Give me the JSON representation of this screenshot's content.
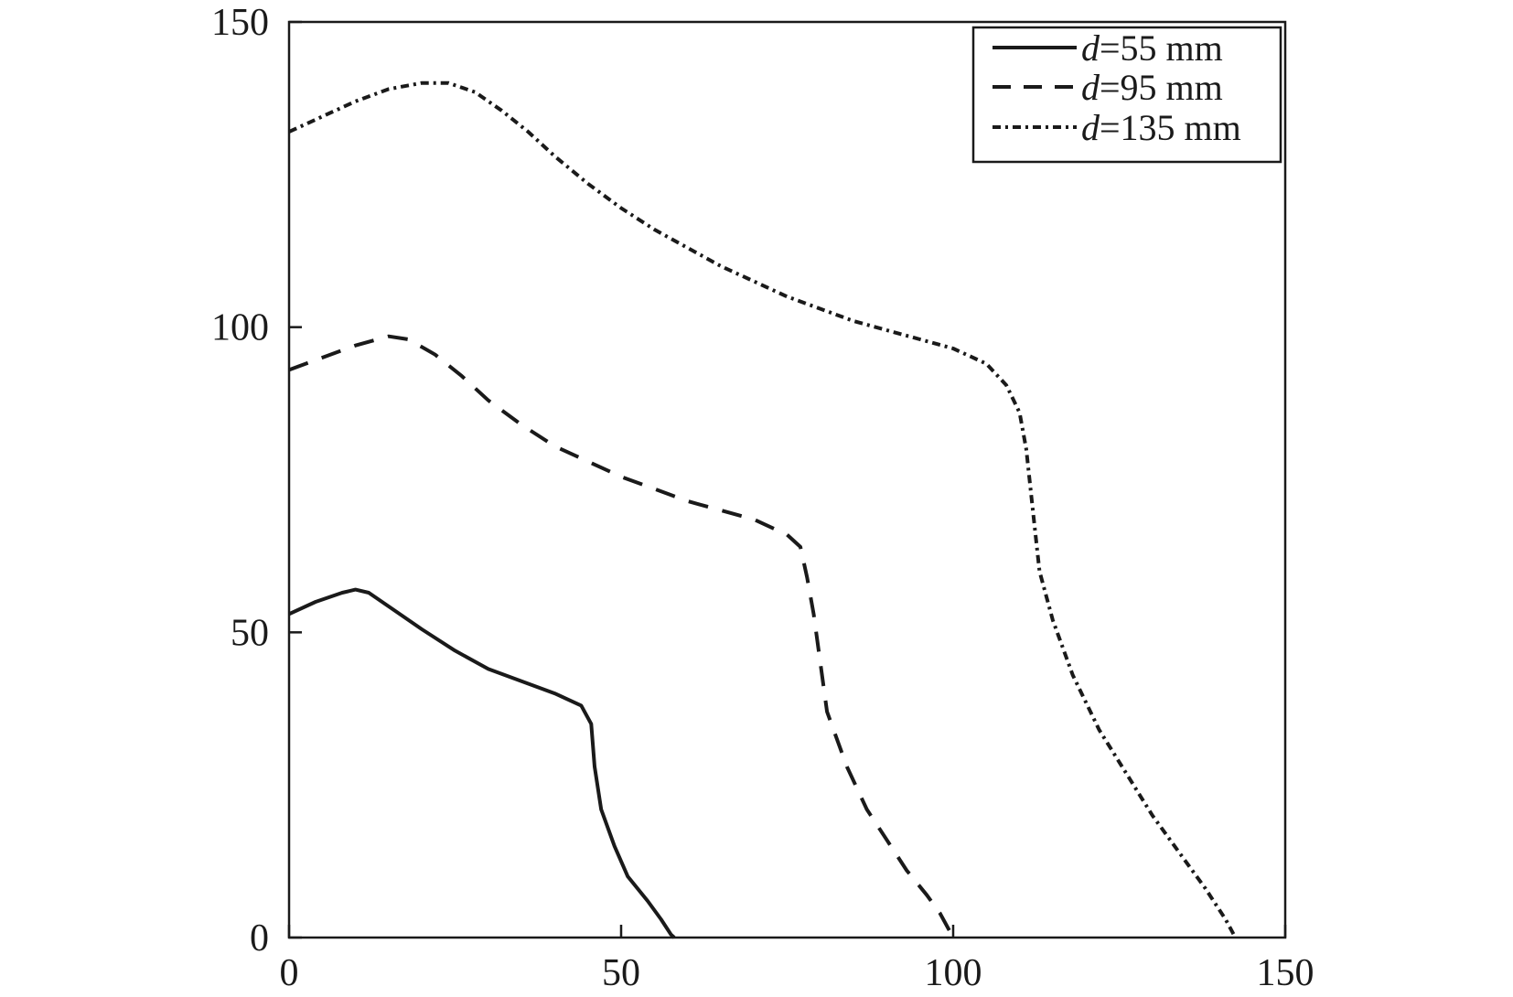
{
  "chart_data": {
    "type": "line",
    "title": "",
    "xlabel": "",
    "ylabel": "",
    "xlim": [
      0,
      150
    ],
    "ylim": [
      0,
      150
    ],
    "xticks": [
      0,
      50,
      100,
      150
    ],
    "yticks": [
      0,
      50,
      100,
      150
    ],
    "grid": false,
    "legend_position": "top-right",
    "series": [
      {
        "name_var": "d",
        "name_rest": "=55 mm",
        "style": "solid",
        "color": "#1a1a1a",
        "points": [
          [
            0,
            53
          ],
          [
            4,
            55
          ],
          [
            8,
            56.5
          ],
          [
            10,
            57
          ],
          [
            12,
            56.5
          ],
          [
            16,
            53.5
          ],
          [
            20,
            50.5
          ],
          [
            25,
            47
          ],
          [
            30,
            44
          ],
          [
            35,
            42
          ],
          [
            40,
            40
          ],
          [
            44,
            38
          ],
          [
            45.5,
            35
          ],
          [
            46,
            28
          ],
          [
            47,
            21
          ],
          [
            49,
            15
          ],
          [
            51,
            10
          ],
          [
            54,
            6
          ],
          [
            56,
            3
          ],
          [
            57.5,
            0.5
          ],
          [
            58,
            0
          ]
        ]
      },
      {
        "name_var": "d",
        "name_rest": "=95 mm",
        "style": "dashed",
        "color": "#1a1a1a",
        "points": [
          [
            0,
            93
          ],
          [
            5,
            95
          ],
          [
            10,
            97
          ],
          [
            15,
            98.5
          ],
          [
            18,
            98
          ],
          [
            22,
            95.5
          ],
          [
            26,
            92
          ],
          [
            30,
            88
          ],
          [
            35,
            84
          ],
          [
            40,
            80.5
          ],
          [
            45,
            78
          ],
          [
            50,
            75.5
          ],
          [
            55,
            73.5
          ],
          [
            60,
            71.5
          ],
          [
            65,
            70
          ],
          [
            70,
            68.5
          ],
          [
            75,
            66
          ],
          [
            77,
            64
          ],
          [
            78,
            59
          ],
          [
            79,
            53
          ],
          [
            80,
            45
          ],
          [
            81,
            37
          ],
          [
            84,
            28
          ],
          [
            87,
            21
          ],
          [
            90,
            16
          ],
          [
            93,
            11
          ],
          [
            96,
            7
          ],
          [
            98,
            4
          ],
          [
            99.5,
            1
          ],
          [
            100,
            0
          ]
        ]
      },
      {
        "name_var": "d",
        "name_rest": "=135 mm",
        "style": "dashdot",
        "color": "#1a1a1a",
        "points": [
          [
            0,
            132
          ],
          [
            5,
            134.5
          ],
          [
            10,
            137
          ],
          [
            15,
            139
          ],
          [
            20,
            140
          ],
          [
            24,
            140
          ],
          [
            28,
            138.5
          ],
          [
            32,
            135.5
          ],
          [
            36,
            132
          ],
          [
            40,
            128
          ],
          [
            45,
            123.5
          ],
          [
            50,
            119.5
          ],
          [
            55,
            116
          ],
          [
            60,
            113
          ],
          [
            65,
            110
          ],
          [
            70,
            107.5
          ],
          [
            75,
            105
          ],
          [
            80,
            103
          ],
          [
            85,
            101
          ],
          [
            90,
            99.5
          ],
          [
            95,
            98
          ],
          [
            100,
            96.5
          ],
          [
            105,
            94
          ],
          [
            108,
            90.5
          ],
          [
            110,
            86
          ],
          [
            111,
            80
          ],
          [
            112,
            70
          ],
          [
            113,
            60
          ],
          [
            115,
            52
          ],
          [
            118,
            43
          ],
          [
            122,
            34
          ],
          [
            126,
            27
          ],
          [
            130,
            20
          ],
          [
            134,
            14
          ],
          [
            138,
            8
          ],
          [
            141,
            3
          ],
          [
            142,
            1
          ],
          [
            142.5,
            0
          ]
        ]
      }
    ]
  }
}
